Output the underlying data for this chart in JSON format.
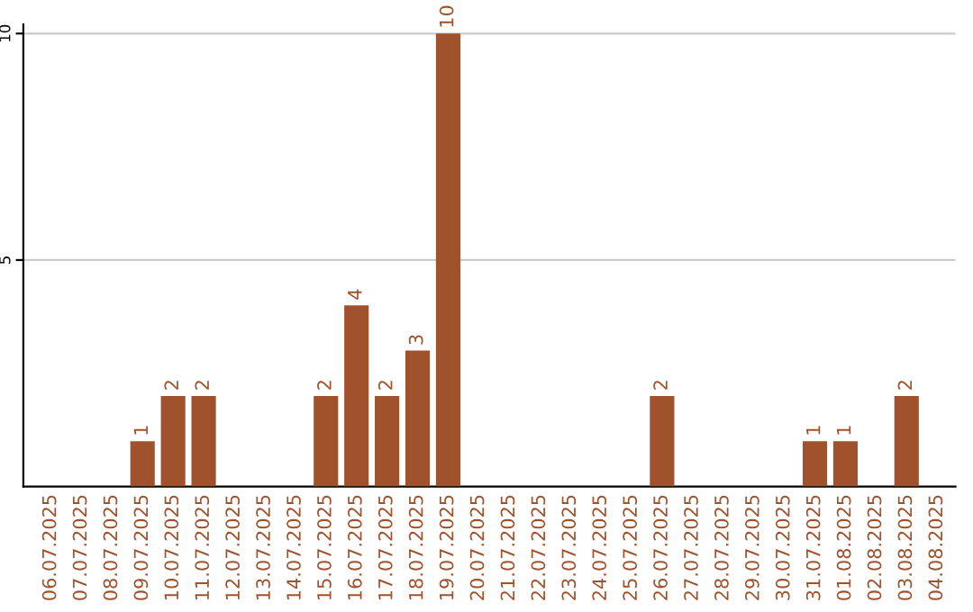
{
  "chart_data": {
    "type": "bar",
    "categories": [
      "06.07.2025",
      "07.07.2025",
      "08.07.2025",
      "09.07.2025",
      "10.07.2025",
      "11.07.2025",
      "12.07.2025",
      "13.07.2025",
      "14.07.2025",
      "15.07.2025",
      "16.07.2025",
      "17.07.2025",
      "18.07.2025",
      "19.07.2025",
      "20.07.2025",
      "21.07.2025",
      "22.07.2025",
      "23.07.2025",
      "24.07.2025",
      "25.07.2025",
      "26.07.2025",
      "27.07.2025",
      "28.07.2025",
      "29.07.2025",
      "30.07.2025",
      "31.07.2025",
      "01.08.2025",
      "02.08.2025",
      "03.08.2025",
      "04.08.2025"
    ],
    "values": [
      0,
      0,
      0,
      1,
      2,
      2,
      0,
      0,
      0,
      2,
      4,
      2,
      3,
      10,
      0,
      0,
      0,
      0,
      0,
      0,
      2,
      0,
      0,
      0,
      0,
      1,
      1,
      0,
      2,
      0
    ],
    "value_labels": [
      null,
      null,
      null,
      "1",
      "2",
      "2",
      null,
      null,
      null,
      "2",
      "4",
      "2",
      "3",
      "10",
      null,
      null,
      null,
      null,
      null,
      null,
      "2",
      null,
      null,
      null,
      null,
      "1",
      "1",
      null,
      "2",
      null
    ],
    "color": "#a0522d",
    "ylim": [
      0,
      10.2
    ],
    "yticks": [
      5,
      10
    ],
    "grid": "y",
    "legend": false
  }
}
